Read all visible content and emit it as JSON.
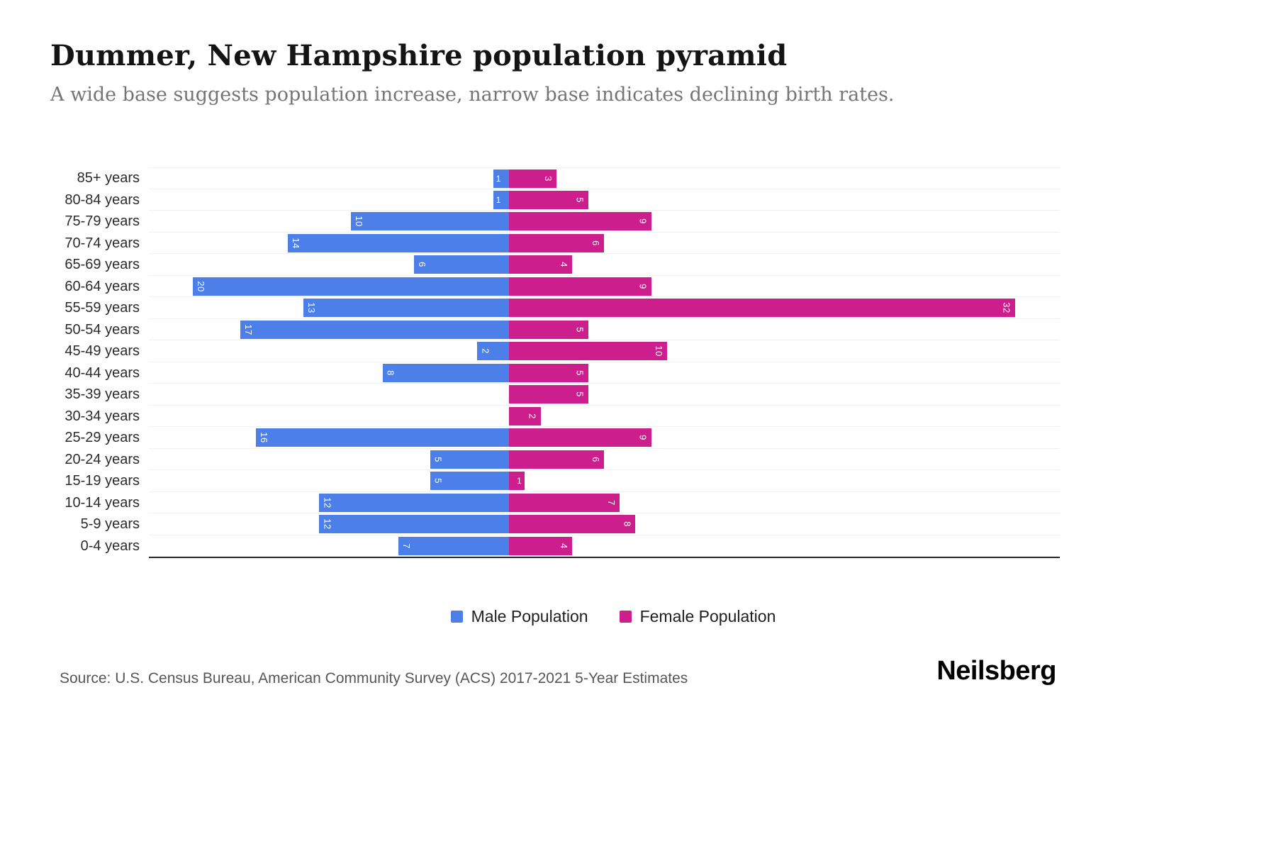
{
  "header": {
    "title": "Dummer, New Hampshire population pyramid",
    "subtitle": "A wide base suggests population increase, narrow base indicates declining birth rates."
  },
  "chart_data": {
    "type": "bar",
    "variant": "population-pyramid",
    "orientation": "horizontal",
    "title": "Dummer, New Hampshire population pyramid",
    "xlabel": "",
    "ylabel": "",
    "grid": "horizontal-faint",
    "legend_position": "bottom",
    "value_axis_ticks_shown": false,
    "categories": [
      "85+ years",
      "80-84 years",
      "75-79 years",
      "70-74 years",
      "65-69 years",
      "60-64 years",
      "55-59 years",
      "50-54 years",
      "45-49 years",
      "40-44 years",
      "35-39 years",
      "30-34 years",
      "25-29 years",
      "20-24 years",
      "15-19 years",
      "10-14 years",
      "5-9 years",
      "0-4 years"
    ],
    "series": [
      {
        "name": "Male Population",
        "side": "left",
        "color": "#4C80E8",
        "values": [
          1,
          1,
          10,
          14,
          6,
          20,
          13,
          17,
          2,
          8,
          0,
          0,
          16,
          5,
          5,
          12,
          12,
          7
        ]
      },
      {
        "name": "Female Population",
        "side": "right",
        "color": "#CC1E8C",
        "values": [
          3,
          5,
          9,
          6,
          4,
          9,
          32,
          5,
          10,
          5,
          5,
          2,
          9,
          6,
          1,
          7,
          8,
          4
        ]
      }
    ]
  },
  "legend": {
    "male_label": "Male Population",
    "female_label": "Female Population",
    "male_color": "#4C80E8",
    "female_color": "#CC1E8C"
  },
  "footer": {
    "source": "Source: U.S. Census Bureau, American Community Survey (ACS) 2017-2021 5-Year Estimates",
    "logo": "Neilsberg"
  }
}
